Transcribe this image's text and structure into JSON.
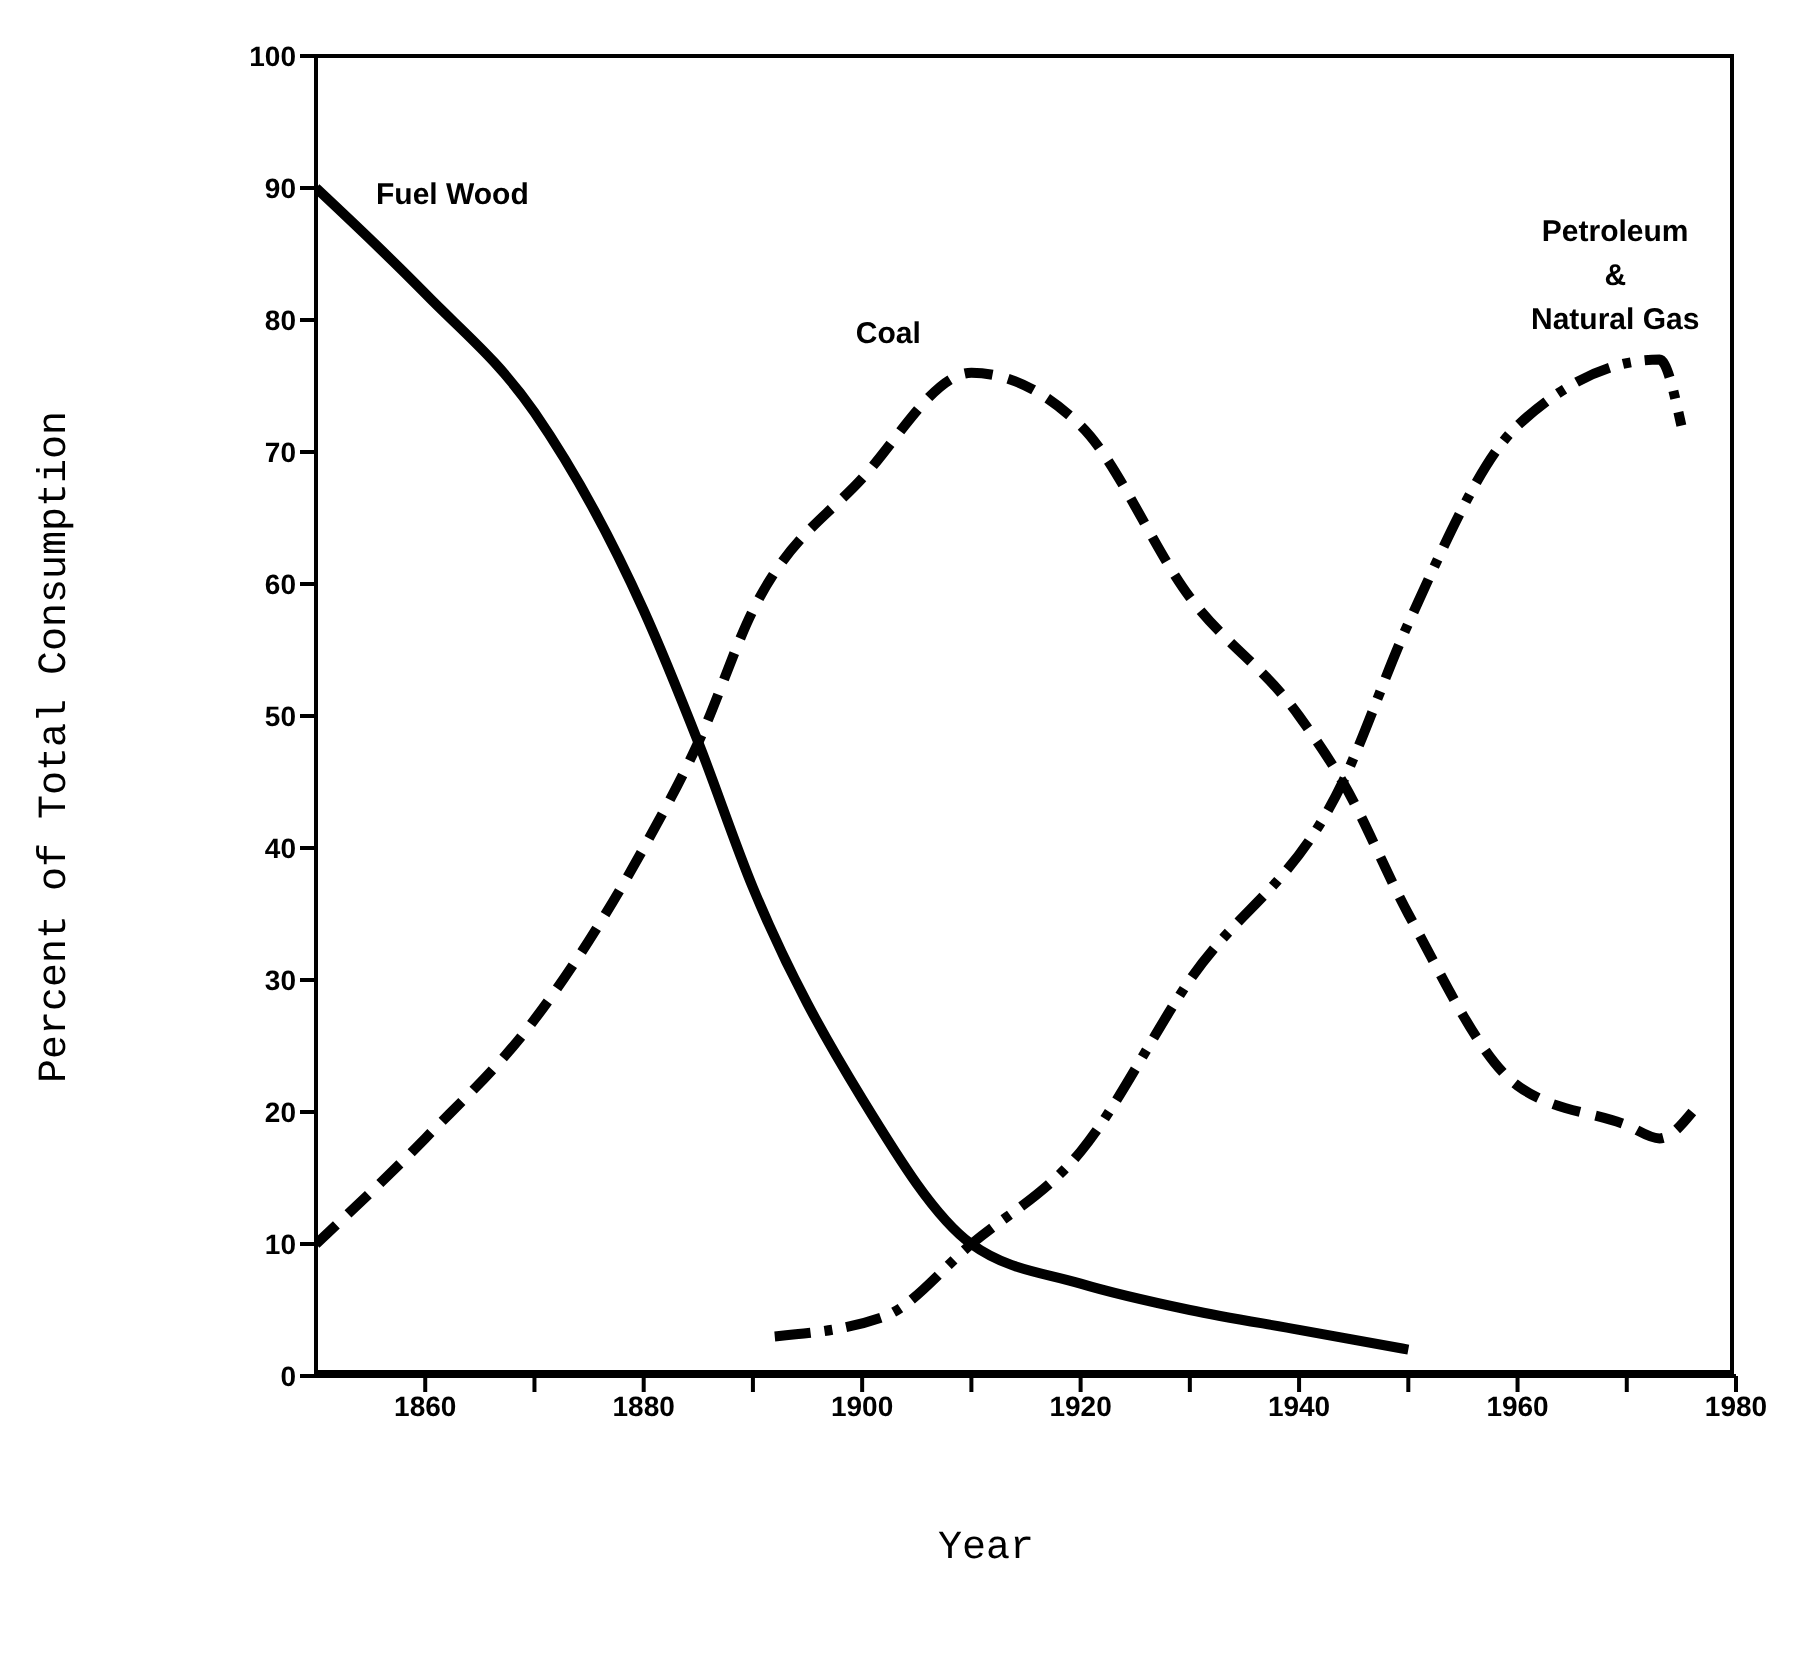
{
  "chart_data": {
    "type": "line",
    "xlabel": "Year",
    "ylabel": "Percent of Total Consumption",
    "xlim": [
      1850,
      1980
    ],
    "xticks": [
      {
        "value": 1860,
        "label": "1860"
      },
      {
        "value": 1870,
        "label": null
      },
      {
        "value": 1880,
        "label": "1880"
      },
      {
        "value": 1890,
        "label": null
      },
      {
        "value": 1900,
        "label": "1900"
      },
      {
        "value": 1910,
        "label": null
      },
      {
        "value": 1920,
        "label": "1920"
      },
      {
        "value": 1930,
        "label": null
      },
      {
        "value": 1940,
        "label": "1940"
      },
      {
        "value": 1950,
        "label": null
      },
      {
        "value": 1960,
        "label": "1960"
      },
      {
        "value": 1970,
        "label": null
      },
      {
        "value": 1980,
        "label": "1980"
      }
    ],
    "ylim": [
      0,
      100
    ],
    "yticks": [
      0,
      10,
      20,
      30,
      40,
      50,
      60,
      70,
      80,
      90,
      100
    ],
    "grid": false,
    "legend": false,
    "marker": "none",
    "series": [
      {
        "name": "Fuel Wood",
        "color": "#000000",
        "line_style": "solid",
        "x": [
          1850,
          1860,
          1870,
          1880,
          1885,
          1890,
          1900,
          1910,
          1920,
          1930,
          1940,
          1950
        ],
        "values": [
          90,
          82,
          73,
          58,
          48,
          37,
          21,
          10,
          7,
          5,
          3.5,
          2
        ]
      },
      {
        "name": "Coal",
        "color": "#000000",
        "line_style": "dashed",
        "x": [
          1850,
          1860,
          1870,
          1880,
          1885,
          1890,
          1900,
          1910,
          1920,
          1930,
          1940,
          1944,
          1950,
          1960,
          1970,
          1973,
          1976
        ],
        "values": [
          10,
          18,
          27,
          40,
          48,
          58,
          68,
          76,
          72,
          59,
          50,
          45,
          35,
          22,
          19,
          18,
          20
        ]
      },
      {
        "name": "Petroleum\n&\nNatural Gas",
        "color": "#000000",
        "line_style": "dashdot",
        "x": [
          1892,
          1902,
          1910,
          1920,
          1930,
          1944,
          1950,
          1960,
          1973,
          1975
        ],
        "values": [
          3,
          4.5,
          10,
          17,
          30,
          45,
          57,
          72,
          77,
          72
        ]
      }
    ]
  }
}
